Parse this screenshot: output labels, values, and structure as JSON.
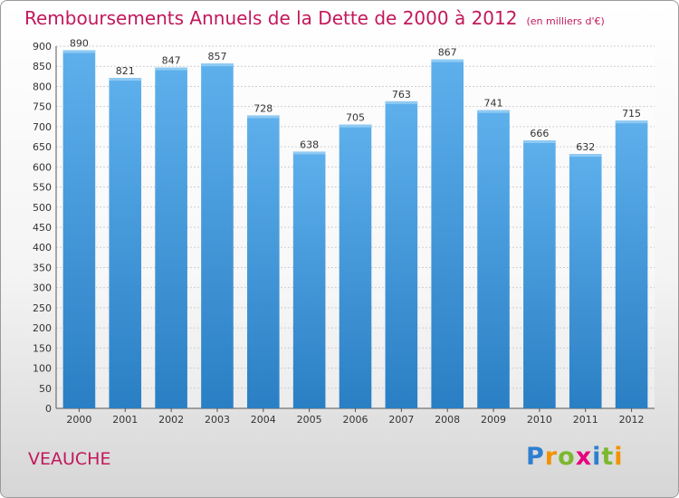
{
  "chart_data": {
    "type": "bar",
    "title": "Remboursements Annuels de la Dette de 2000 à 2012",
    "subtitle": "(en milliers d'€)",
    "xlabel": "",
    "ylabel": "",
    "categories": [
      "2000",
      "2001",
      "2002",
      "2003",
      "2004",
      "2005",
      "2006",
      "2007",
      "2008",
      "2009",
      "2010",
      "2011",
      "2012"
    ],
    "values": [
      890,
      821,
      847,
      857,
      728,
      638,
      705,
      763,
      867,
      741,
      666,
      632,
      715
    ],
    "ylim": [
      0,
      900
    ],
    "ytick_step": 50,
    "grid": true,
    "bar_color": "#4d9fe0"
  },
  "commune": "VEAUCHE",
  "logo": {
    "letters": [
      "P",
      "r",
      "o",
      "x",
      "i",
      "t",
      "i"
    ],
    "colors": [
      "#2e7fd0",
      "#f39200",
      "#7cb82f",
      "#e6007e",
      "#2e7fd0",
      "#7cb82f",
      "#f39200"
    ]
  }
}
